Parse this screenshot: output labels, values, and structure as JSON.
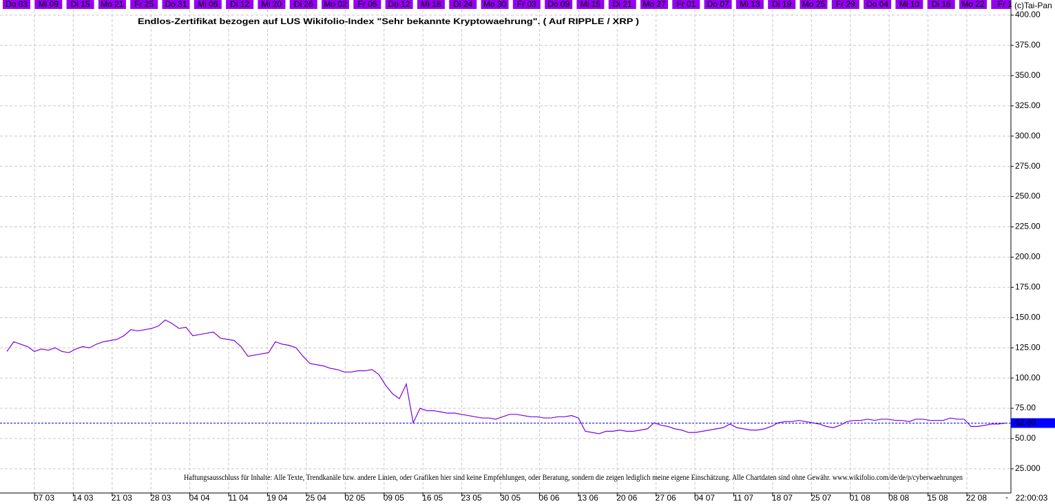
{
  "chart_data": {
    "type": "line",
    "title": "Endlos-Zertifikat bezogen auf LUS Wikifolio-Index \"Sehr bekannte Kryptowaehrung\". ( Auf RIPPLE / XRP )",
    "watermark": "(c)Tai-Pan",
    "disclaimer": "Haftungsausschluss für Inhalte: Alle Texte, Trendkanäle bzw. andere Linien, oder Grafiken hier sind keine Empfehlungen, oder Beratung, sondern die zeigen lediglich meine eigene Einschätzung. Alle Chartdaten sind ohne Gewähr.  www.wikifolio.com/de/de/p/cyberwaehrungen",
    "top_dates": [
      "Do 03",
      "Mi 09",
      "Di 15",
      "Mo 21",
      "Fr 25",
      "Do 31",
      "Mi 06",
      "Di 12",
      "Mi 20",
      "Di 26",
      "Mo 02",
      "Fr 06",
      "Do 12",
      "Mi 18",
      "Di 24",
      "Mo 30",
      "Fr 03",
      "Do 09",
      "Mi 15",
      "Di 21",
      "Mo 27",
      "Fr 01",
      "Do 07",
      "Mi 13",
      "Di 19",
      "Mo 25",
      "Fr 29",
      "Do 04",
      "Mi 10",
      "Di 16",
      "Mo 22",
      "Fr 1"
    ],
    "x_labels": [
      "07 03",
      "14 03",
      "21 03",
      "28 03",
      "04 04",
      "11 04",
      "19 04",
      "25 04",
      "02 05",
      "09 05",
      "16 05",
      "23 05",
      "30 05",
      "06 06",
      "13 06",
      "20 06",
      "27 06",
      "04 07",
      "11 07",
      "18 07",
      "25 07",
      "01 08",
      "08 08",
      "15 08",
      "22 08"
    ],
    "dash": "-",
    "time": "22:00:03",
    "series": [
      {
        "color": "#7b00e0",
        "values": [
          122,
          130,
          128,
          126,
          122,
          124,
          123,
          125,
          122,
          121,
          124,
          126,
          125,
          128,
          130,
          131,
          132,
          135,
          140,
          139,
          140,
          141,
          143,
          148,
          145,
          141,
          142,
          135,
          136,
          137,
          138,
          133,
          132,
          131,
          126,
          118,
          119,
          120,
          121,
          130,
          128,
          127,
          125,
          118,
          112,
          111,
          110,
          108,
          107,
          105,
          105,
          106,
          106,
          107,
          103,
          94,
          87,
          83,
          95,
          63,
          75,
          73,
          73,
          72,
          71,
          71,
          70,
          69,
          68,
          67,
          67,
          66,
          68,
          70,
          70,
          69,
          68,
          68,
          67,
          67,
          68,
          68,
          69,
          67,
          56,
          55,
          54,
          56,
          56,
          57,
          56,
          56,
          57,
          58,
          63,
          61,
          60,
          58,
          57,
          55,
          55,
          56,
          57,
          58,
          59,
          62,
          59,
          58,
          57,
          57,
          58,
          60,
          63,
          64,
          64,
          65,
          64,
          63,
          62,
          60,
          59,
          61,
          64,
          65,
          65,
          66,
          65,
          66,
          66,
          65,
          65,
          64,
          66,
          66,
          65,
          65,
          65,
          67,
          66,
          66,
          60,
          60,
          61,
          62,
          62,
          62.8
        ]
      }
    ],
    "ylim": [
      5,
      412.5
    ],
    "yticks": [
      {
        "value": 25,
        "label": "25.000"
      },
      {
        "value": 50,
        "label": "50.00"
      },
      {
        "value": 75,
        "label": "75.00"
      },
      {
        "value": 100,
        "label": "100.00"
      },
      {
        "value": 125,
        "label": "125.00"
      },
      {
        "value": 150,
        "label": "150.00"
      },
      {
        "value": 175,
        "label": "175.00"
      },
      {
        "value": 200,
        "label": "200.00"
      },
      {
        "value": 225,
        "label": "225.00"
      },
      {
        "value": 250,
        "label": "250.00"
      },
      {
        "value": 275,
        "label": "275.00"
      },
      {
        "value": 300,
        "label": "300.00"
      },
      {
        "value": 325,
        "label": "325.00"
      },
      {
        "value": 350,
        "label": "350.00"
      },
      {
        "value": 375,
        "label": "375.00"
      },
      {
        "value": 400,
        "label": "400.00"
      }
    ],
    "grid": true,
    "last_price": {
      "value": 62.8,
      "label": "62.80"
    },
    "last_price_color": "#0000ff",
    "strip_color": "#9400f0"
  }
}
